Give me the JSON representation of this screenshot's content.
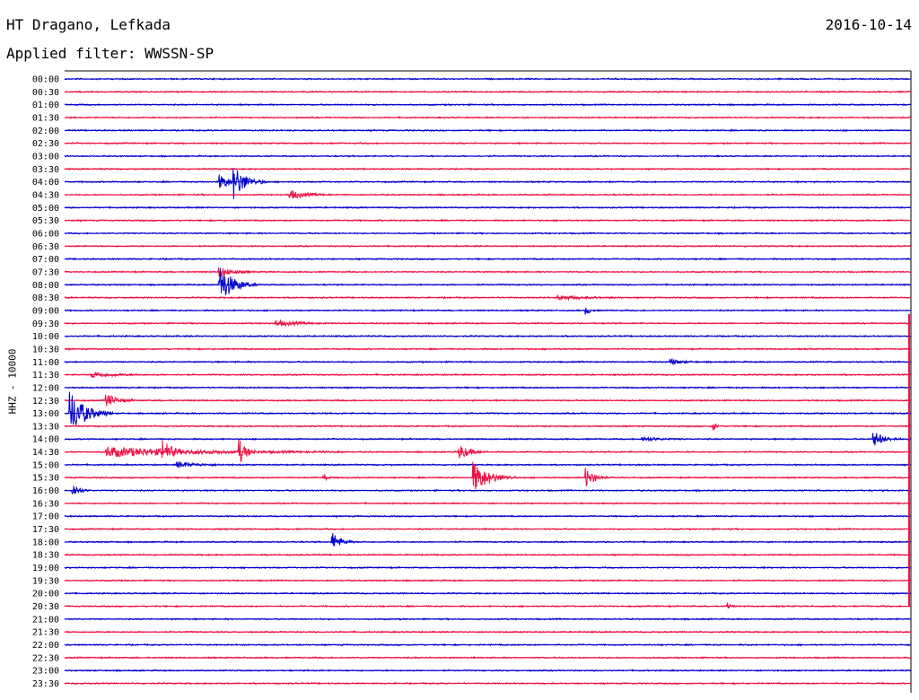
{
  "header": {
    "station": "HT Dragano, Lefkada",
    "filter": "Applied filter: WWSSN-SP",
    "date": "2016-10-14"
  },
  "colors": {
    "trace_a": "#0000cc",
    "trace_b": "#ee1144",
    "axis": "#000000"
  },
  "chart_data": {
    "type": "line",
    "title": "HT Dragano, Lefkada",
    "subtitle": "Applied filter: WWSSN-SP",
    "date": "2016-10-14",
    "ylabel": "HHZ - 10000",
    "xlabel": "",
    "row_minutes": 30,
    "row_labels": [
      "00:00",
      "00:30",
      "01:00",
      "01:30",
      "02:00",
      "02:30",
      "03:00",
      "03:30",
      "04:00",
      "04:30",
      "05:00",
      "05:30",
      "06:00",
      "06:30",
      "07:00",
      "07:30",
      "08:00",
      "08:30",
      "09:00",
      "09:30",
      "10:00",
      "10:30",
      "11:00",
      "11:30",
      "12:00",
      "12:30",
      "13:00",
      "13:30",
      "14:00",
      "14:30",
      "15:00",
      "15:30",
      "16:00",
      "16:30",
      "17:00",
      "17:30",
      "18:00",
      "18:30",
      "19:00",
      "19:30",
      "20:00",
      "20:30",
      "21:00",
      "21:30",
      "22:00",
      "22:30",
      "23:00",
      "23:30"
    ],
    "series": [
      {
        "colors_alternate": [
          "#0000cc",
          "#ee1144"
        ]
      }
    ],
    "events": [
      {
        "row": 8,
        "minute": 5.5,
        "amplitude": 1.0,
        "duration": 1.2
      },
      {
        "row": 8,
        "minute": 6,
        "amplitude": 2.0,
        "duration": 1.2
      },
      {
        "row": 9,
        "minute": 8,
        "amplitude": 0.6,
        "duration": 1.5
      },
      {
        "row": 15,
        "minute": 5.5,
        "amplitude": 0.7,
        "duration": 1.2
      },
      {
        "row": 16,
        "minute": 5.5,
        "amplitude": 2.6,
        "duration": 1.3
      },
      {
        "row": 17,
        "minute": 17.5,
        "amplitude": 0.3,
        "duration": 2.5
      },
      {
        "row": 18,
        "minute": 18.5,
        "amplitude": 0.5,
        "duration": 0.4
      },
      {
        "row": 19,
        "minute": 7.5,
        "amplitude": 0.4,
        "duration": 2.0
      },
      {
        "row": 22,
        "minute": 21.5,
        "amplitude": 0.4,
        "duration": 1.0
      },
      {
        "row": 23,
        "minute": 1,
        "amplitude": 0.4,
        "duration": 2.0
      },
      {
        "row": 25,
        "minute": 1.5,
        "amplitude": 0.9,
        "duration": 1.0
      },
      {
        "row": 26,
        "minute": 0.2,
        "amplitude": 3.0,
        "duration": 1.5
      },
      {
        "row": 27,
        "minute": 23,
        "amplitude": 0.6,
        "duration": 0.3
      },
      {
        "row": 28,
        "minute": 28.7,
        "amplitude": 1.0,
        "duration": 1.0
      },
      {
        "row": 28,
        "minute": 20.5,
        "amplitude": 0.3,
        "duration": 1.5
      },
      {
        "row": 29,
        "minute": 1.5,
        "amplitude": 0.7,
        "duration": 8.5
      },
      {
        "row": 29,
        "minute": 3.5,
        "amplitude": 1.5,
        "duration": 0.6
      },
      {
        "row": 29,
        "minute": 6.2,
        "amplitude": 1.6,
        "duration": 0.6
      },
      {
        "row": 29,
        "minute": 14,
        "amplitude": 1.0,
        "duration": 1.0
      },
      {
        "row": 30,
        "minute": 4,
        "amplitude": 0.4,
        "duration": 2.0
      },
      {
        "row": 31,
        "minute": 14.5,
        "amplitude": 2.2,
        "duration": 1.5
      },
      {
        "row": 31,
        "minute": 18.5,
        "amplitude": 1.3,
        "duration": 0.8
      },
      {
        "row": 31,
        "minute": 9.2,
        "amplitude": 0.5,
        "duration": 0.3
      },
      {
        "row": 32,
        "minute": 0.3,
        "amplitude": 1.0,
        "duration": 0.6
      },
      {
        "row": 36,
        "minute": 9.5,
        "amplitude": 1.3,
        "duration": 0.8
      },
      {
        "row": 41,
        "minute": 23.5,
        "amplitude": 0.5,
        "duration": 0.3
      }
    ]
  }
}
